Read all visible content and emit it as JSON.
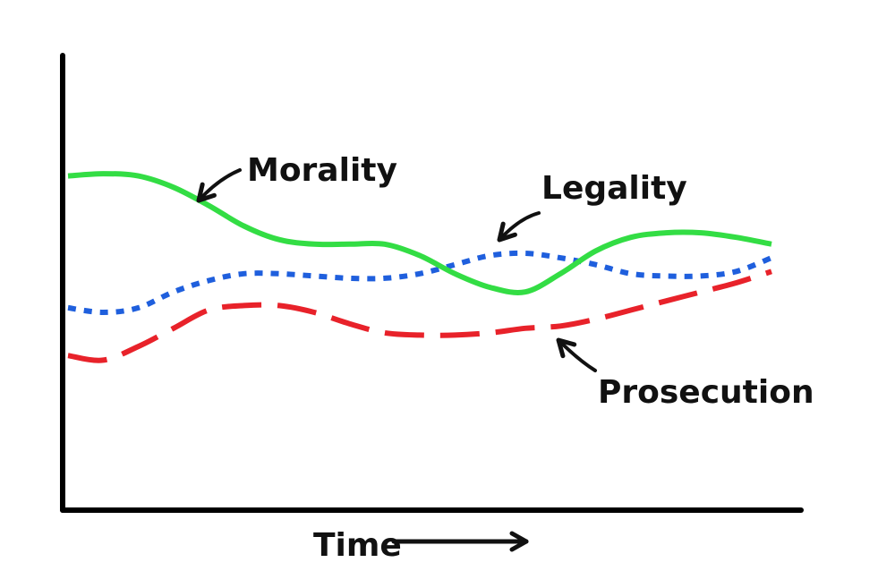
{
  "chart_data": {
    "type": "line",
    "title": "",
    "xlabel": "Time",
    "ylabel": "",
    "xlim": [
      0,
      100
    ],
    "ylim": [
      0,
      100
    ],
    "grid": false,
    "legend": "none",
    "series": [
      {
        "name": "Morality",
        "style": "solid",
        "color": "#33dd44",
        "x": [
          0,
          5,
          10,
          15,
          20,
          25,
          30,
          35,
          40,
          45,
          50,
          55,
          60,
          65,
          70,
          75,
          80,
          85,
          90,
          95,
          100
        ],
        "y": [
          73.5,
          74,
          73.5,
          71,
          67,
          62.5,
          59.5,
          58.5,
          58.5,
          58.5,
          56,
          52,
          49,
          48,
          52,
          57,
          60,
          61,
          61,
          60,
          58.5
        ]
      },
      {
        "name": "Legality",
        "style": "dotted",
        "color": "#1f5fdd",
        "x": [
          0,
          5,
          10,
          15,
          20,
          25,
          30,
          35,
          40,
          45,
          50,
          55,
          60,
          65,
          70,
          75,
          80,
          85,
          90,
          95,
          100
        ],
        "y": [
          44.5,
          43.5,
          44.5,
          48,
          50.5,
          52,
          52,
          51.5,
          51,
          51,
          52,
          54,
          56,
          56.5,
          55.5,
          54,
          52,
          51.5,
          51.5,
          52.5,
          55.5
        ]
      },
      {
        "name": "Prosecution",
        "style": "dashed",
        "color": "#e8222a",
        "x": [
          0,
          5,
          10,
          15,
          20,
          25,
          30,
          35,
          40,
          45,
          50,
          55,
          60,
          65,
          70,
          75,
          80,
          85,
          90,
          95,
          100
        ],
        "y": [
          34,
          33,
          36,
          40,
          44,
          45,
          45,
          43.5,
          41,
          39,
          38.5,
          38.5,
          39,
          40,
          40.5,
          42,
          44,
          46,
          48,
          50,
          52.5
        ]
      }
    ]
  }
}
